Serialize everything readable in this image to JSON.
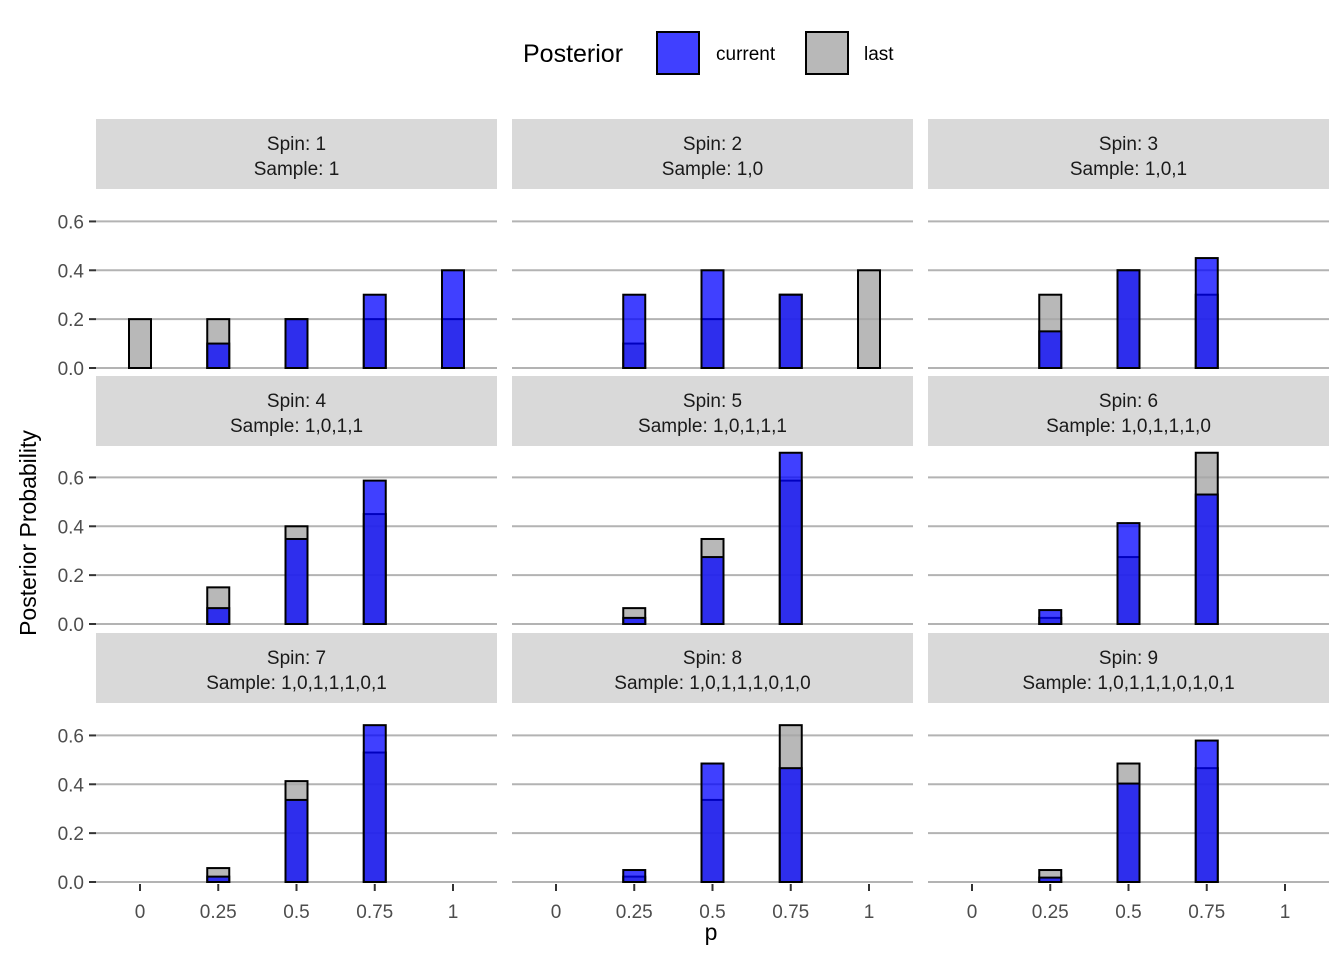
{
  "chart_data": {
    "type": "bar",
    "layout": "facet-grid 3x3",
    "legend": {
      "title": "Posterior",
      "position": "top",
      "entries": [
        {
          "label": "current",
          "color": "#0000ff",
          "alpha": 0.75
        },
        {
          "label": "last",
          "color": "#a6a6a6",
          "alpha": 0.8
        }
      ]
    },
    "xlabel": "p",
    "ylabel": "Posterior Probability",
    "x_ticks": [
      "0",
      "0.25",
      "0.5",
      "0.75",
      "1"
    ],
    "x_values": [
      0,
      0.25,
      0.5,
      0.75,
      1
    ],
    "ylim": [
      0,
      0.7
    ],
    "y_ticks": [
      0,
      0.2,
      0.4,
      0.6
    ],
    "y_tick_labels": [
      "0.0",
      "0.2",
      "0.4",
      "0.6"
    ],
    "grid": true,
    "colors": {
      "current": "#0000ff",
      "last": "#a6a6a6",
      "strip": "#d9d9d9",
      "grid": "#b3b3b3"
    },
    "panels": [
      {
        "strip": [
          "Spin: 1",
          "Sample: 1"
        ],
        "current": [
          0,
          0.1,
          0.2,
          0.3,
          0.4
        ],
        "last": [
          0.2,
          0.2,
          0.2,
          0.2,
          0.2
        ]
      },
      {
        "strip": [
          "Spin: 2",
          "Sample: 1,0"
        ],
        "current": [
          0,
          0.3,
          0.4,
          0.3,
          0
        ],
        "last": [
          0,
          0.1,
          0.2,
          0.3,
          0.4
        ]
      },
      {
        "strip": [
          "Spin: 3",
          "Sample: 1,0,1"
        ],
        "current": [
          0,
          0.15,
          0.4,
          0.45,
          0
        ],
        "last": [
          0,
          0.3,
          0.4,
          0.3,
          0
        ]
      },
      {
        "strip": [
          "Spin: 4",
          "Sample: 1,0,1,1"
        ],
        "current": [
          0,
          0.065,
          0.348,
          0.587,
          0
        ],
        "last": [
          0,
          0.15,
          0.4,
          0.45,
          0
        ]
      },
      {
        "strip": [
          "Spin: 5",
          "Sample: 1,0,1,1,1"
        ],
        "current": [
          0,
          0.025,
          0.274,
          0.701,
          0
        ],
        "last": [
          0,
          0.065,
          0.348,
          0.587,
          0
        ]
      },
      {
        "strip": [
          "Spin: 6",
          "Sample: 1,0,1,1,1,0"
        ],
        "current": [
          0,
          0.057,
          0.413,
          0.53,
          0
        ],
        "last": [
          0,
          0.025,
          0.274,
          0.701,
          0
        ]
      },
      {
        "strip": [
          "Spin: 7",
          "Sample: 1,0,1,1,1,0,1"
        ],
        "current": [
          0,
          0.022,
          0.336,
          0.642,
          0
        ],
        "last": [
          0,
          0.057,
          0.413,
          0.53,
          0
        ]
      },
      {
        "strip": [
          "Spin: 8",
          "Sample: 1,0,1,1,1,0,1,0"
        ],
        "current": [
          0,
          0.049,
          0.485,
          0.466,
          0
        ],
        "last": [
          0,
          0.022,
          0.336,
          0.642,
          0
        ]
      },
      {
        "strip": [
          "Spin: 9",
          "Sample: 1,0,1,1,1,0,1,0,1"
        ],
        "current": [
          0,
          0.018,
          0.403,
          0.579,
          0
        ],
        "last": [
          0,
          0.049,
          0.485,
          0.466,
          0
        ]
      }
    ]
  }
}
